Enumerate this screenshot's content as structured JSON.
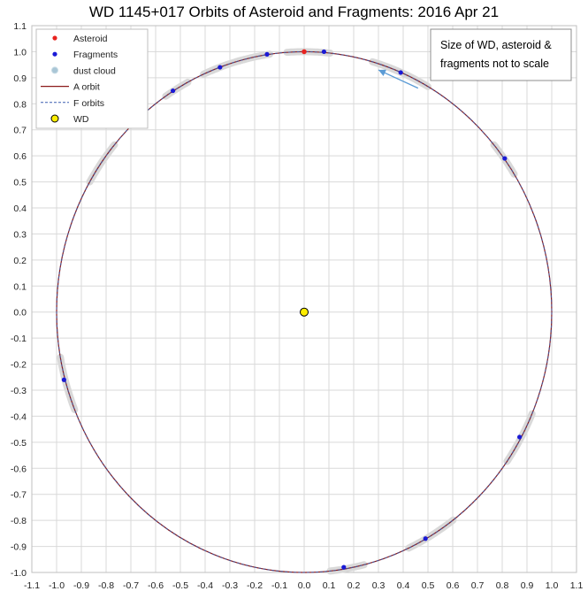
{
  "chart_data": {
    "type": "scatter",
    "title": "WD 1145+017 Orbits of Asteroid and Fragments: 2016 Apr 21",
    "xlim": [
      -1.1,
      1.1
    ],
    "ylim": [
      -1.0,
      1.1
    ],
    "x_ticks": [
      -1.1,
      -1.0,
      -0.9,
      -0.8,
      -0.7,
      -0.6,
      -0.5,
      -0.4,
      -0.3,
      -0.2,
      -0.1,
      0.0,
      0.1,
      0.2,
      0.3,
      0.4,
      0.5,
      0.6,
      0.7,
      0.8,
      0.9,
      1.0,
      1.1
    ],
    "y_ticks": [
      -1.0,
      -0.9,
      -0.8,
      -0.7,
      -0.6,
      -0.5,
      -0.4,
      -0.3,
      -0.2,
      -0.1,
      0.0,
      0.1,
      0.2,
      0.3,
      0.4,
      0.5,
      0.6,
      0.7,
      0.8,
      0.9,
      1.0,
      1.1
    ],
    "grid": true,
    "legend_position": "top-left",
    "series": [
      {
        "name": "Asteroid",
        "kind": "marker",
        "color": "#e8231f",
        "points": [
          [
            0.0,
            1.0
          ]
        ]
      },
      {
        "name": "Fragments",
        "kind": "marker",
        "color": "#1a1ad6",
        "points": [
          [
            0.08,
            1.0
          ],
          [
            -0.15,
            0.99
          ],
          [
            -0.34,
            0.94
          ],
          [
            -0.53,
            0.85
          ],
          [
            0.39,
            0.92
          ],
          [
            0.81,
            0.59
          ],
          [
            -0.97,
            -0.26
          ],
          [
            0.87,
            -0.48
          ],
          [
            0.49,
            -0.87
          ],
          [
            0.16,
            -0.98
          ]
        ]
      },
      {
        "name": "dust cloud",
        "kind": "arc",
        "color": "#d9d9d9",
        "arcs_deg": [
          [
            84,
            94
          ],
          [
            98,
            106
          ],
          [
            108,
            114
          ],
          [
            118,
            124
          ],
          [
            140,
            150
          ],
          [
            104,
            112
          ],
          [
            60,
            74
          ],
          [
            32,
            40
          ],
          [
            190,
            202
          ],
          [
            -35,
            -23
          ],
          [
            -65,
            -53
          ],
          [
            -84,
            -76
          ]
        ]
      },
      {
        "name": "A orbit",
        "kind": "line",
        "color": "#8b1a1a",
        "radius": 1.0
      },
      {
        "name": "F orbits",
        "kind": "dashed-line",
        "color": "#3a5fb0",
        "radius": 1.0
      },
      {
        "name": "WD",
        "kind": "marker",
        "color": "#ffee00",
        "points": [
          [
            0.0,
            0.0
          ]
        ]
      }
    ],
    "annotation": "Size of WD, asteroid & fragments not to scale",
    "arrow": {
      "from": [
        0.46,
        0.86
      ],
      "to": [
        0.3,
        0.93
      ],
      "color": "#5b9bd5"
    }
  }
}
